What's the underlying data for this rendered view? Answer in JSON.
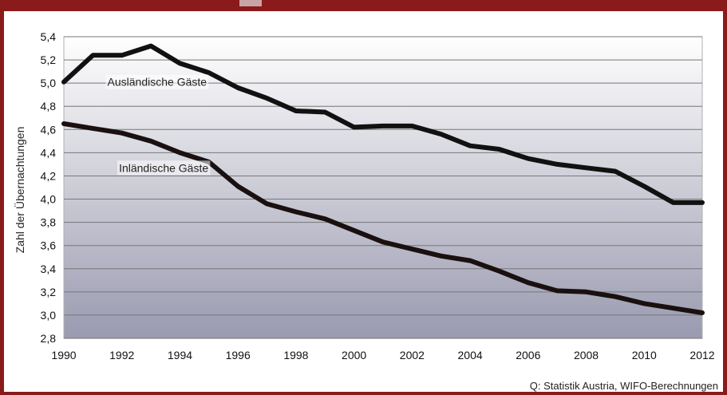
{
  "colors": {
    "frame": "#8b1a1a",
    "plot_top": "#ffffff",
    "plot_bottom": "#9a9ab0",
    "grid": "#777777",
    "line_auslaendisch": "#111111",
    "line_inlaendisch": "#1a1010"
  },
  "chart_data": {
    "type": "line",
    "title": "",
    "xlabel": "",
    "ylabel": "Zahl der Übernachtungen",
    "source": "Q: Statistik Austria, WIFO-Berechnungen",
    "ylim": [
      2.8,
      5.4
    ],
    "xlim": [
      1990,
      2012
    ],
    "y_ticks": [
      "5,4",
      "5,2",
      "5,0",
      "4,8",
      "4,6",
      "4,4",
      "4,2",
      "4,0",
      "3,8",
      "3,6",
      "3,4",
      "3,2",
      "3,0",
      "2,8"
    ],
    "x_ticks": [
      "1990",
      "1992",
      "1994",
      "1996",
      "1998",
      "2000",
      "2002",
      "2004",
      "2006",
      "2008",
      "2010",
      "2012"
    ],
    "grid": true,
    "legend": "none",
    "x": [
      1990,
      1991,
      1992,
      1993,
      1994,
      1995,
      1996,
      1997,
      1998,
      1999,
      2000,
      2001,
      2002,
      2003,
      2004,
      2005,
      2006,
      2007,
      2008,
      2009,
      2010,
      2011,
      2012
    ],
    "series": [
      {
        "name": "Ausländische Gäste",
        "values": [
          5.01,
          5.24,
          5.24,
          5.32,
          5.17,
          5.09,
          4.96,
          4.87,
          4.76,
          4.75,
          4.62,
          4.63,
          4.63,
          4.56,
          4.46,
          4.43,
          4.35,
          4.3,
          4.27,
          4.24,
          4.11,
          3.97,
          3.97
        ]
      },
      {
        "name": "Inländische Gäste",
        "values": [
          4.65,
          4.61,
          4.57,
          4.5,
          4.4,
          4.32,
          4.11,
          3.96,
          3.89,
          3.83,
          3.73,
          3.63,
          3.57,
          3.51,
          3.47,
          3.38,
          3.28,
          3.21,
          3.2,
          3.16,
          3.1,
          3.06,
          3.02
        ]
      }
    ]
  }
}
